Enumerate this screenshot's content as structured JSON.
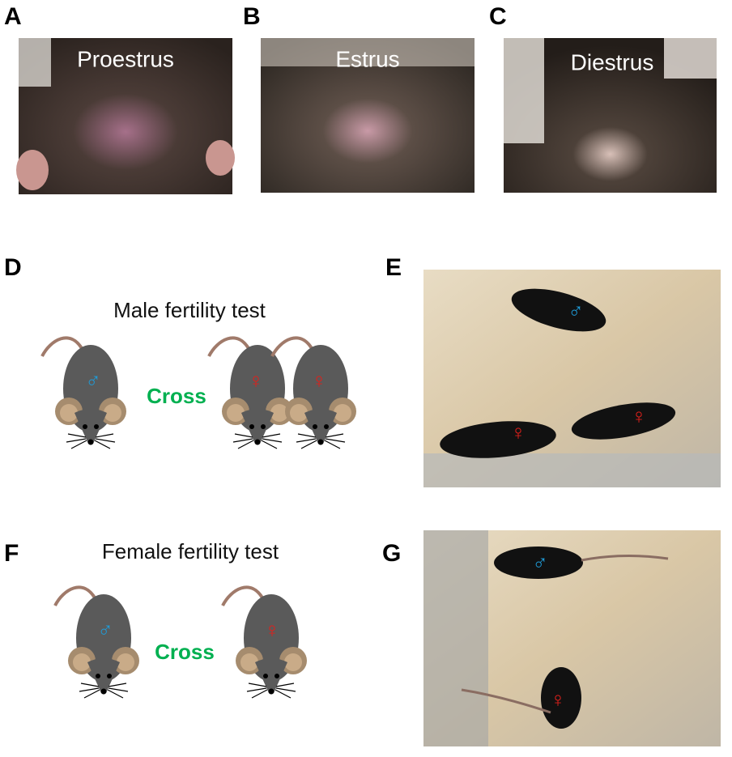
{
  "panels": [
    {
      "letter": "A",
      "label": "Proestrus"
    },
    {
      "letter": "B",
      "label": "Estrus"
    },
    {
      "letter": "C",
      "label": "Diestrus"
    }
  ],
  "male_test": {
    "letter": "D",
    "title": "Male fertility test",
    "action": "Cross"
  },
  "male_photo": {
    "letter": "E"
  },
  "female_test": {
    "letter": "F",
    "title": "Female fertility test",
    "action": "Cross"
  },
  "female_photo": {
    "letter": "G"
  },
  "symbols": {
    "male": "♂",
    "female": "♀"
  }
}
